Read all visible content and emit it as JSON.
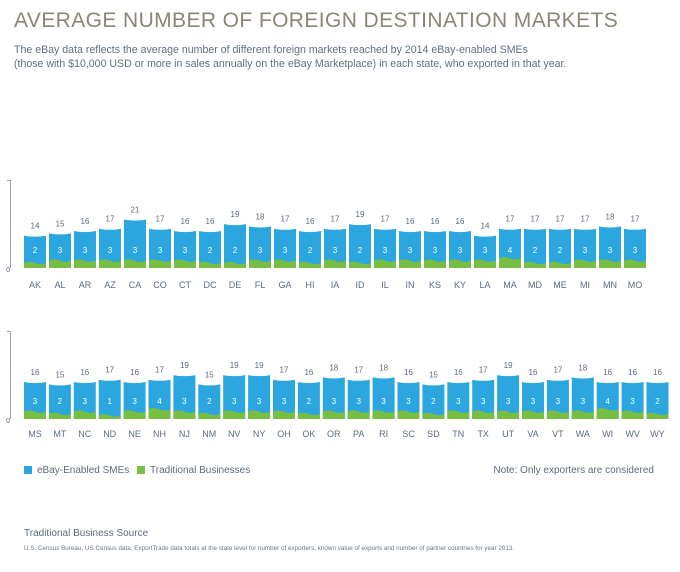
{
  "header": {
    "title": "AVERAGE NUMBER OF FOREIGN DESTINATION MARKETS",
    "subtitle_line1": "The eBay data reflects the average number of different foreign markets reached by 2014 eBay-enabled SMEs",
    "subtitle_line2": "(those with $10,000 USD or more in sales annually on the eBay Marketplace) in each state, who exported in that year."
  },
  "legend": {
    "ebay_label": "eBay-Enabled SMEs",
    "traditional_label": "Traditional Businesses",
    "note": "Note: Only exporters are considered"
  },
  "source": {
    "title": "Traditional Business Source",
    "text": "U.S. Census Bureau, US Census data, ExportTrade data totals at the state level for number of exporters, known value of exports and number of partner countries for year 2013."
  },
  "colors": {
    "ebay": "#2ca6df",
    "traditional": "#78be43",
    "label": "#5b6b80",
    "axis": "#9aa3ad"
  },
  "chart_data": [
    {
      "type": "bar",
      "stacked": false,
      "ylim": [
        0,
        21
      ],
      "y_tick_labels": [
        "0"
      ],
      "categories": [
        "AK",
        "AL",
        "AR",
        "AZ",
        "CA",
        "CO",
        "CT",
        "DC",
        "DE",
        "FL",
        "GA",
        "HI",
        "IA",
        "ID",
        "IL",
        "IN",
        "KS",
        "KY",
        "LA",
        "MA",
        "MD",
        "ME",
        "MI",
        "MN",
        "MO"
      ],
      "series": [
        {
          "name": "eBay-Enabled SMEs",
          "values": [
            14,
            15,
            16,
            17,
            21,
            17,
            16,
            16,
            19,
            18,
            17,
            16,
            17,
            19,
            17,
            16,
            16,
            16,
            14,
            17,
            17,
            17,
            17,
            18,
            17
          ]
        },
        {
          "name": "Traditional Businesses",
          "values": [
            2,
            3,
            3,
            3,
            3,
            3,
            3,
            2,
            2,
            3,
            3,
            2,
            3,
            2,
            3,
            3,
            3,
            3,
            3,
            4,
            2,
            2,
            3,
            3,
            3
          ]
        }
      ]
    },
    {
      "type": "bar",
      "stacked": false,
      "ylim": [
        0,
        21
      ],
      "y_tick_labels": [
        "0"
      ],
      "categories": [
        "MS",
        "MT",
        "NC",
        "ND",
        "NE",
        "NH",
        "NJ",
        "NM",
        "NV",
        "NY",
        "OH",
        "OK",
        "OR",
        "PA",
        "RI",
        "SC",
        "SD",
        "TN",
        "TX",
        "UT",
        "VA",
        "VT",
        "WA",
        "WI",
        "WV",
        "WY"
      ],
      "series": [
        {
          "name": "eBay-Enabled SMEs",
          "values": [
            16,
            15,
            16,
            17,
            16,
            17,
            19,
            15,
            19,
            19,
            17,
            16,
            18,
            17,
            18,
            16,
            15,
            16,
            17,
            19,
            16,
            17,
            18,
            16,
            16,
            16
          ]
        },
        {
          "name": "Traditional Businesses",
          "values": [
            3,
            2,
            3,
            1,
            3,
            4,
            3,
            2,
            3,
            3,
            3,
            2,
            3,
            3,
            3,
            3,
            2,
            3,
            3,
            3,
            3,
            3,
            3,
            4,
            3,
            2
          ]
        }
      ]
    }
  ]
}
